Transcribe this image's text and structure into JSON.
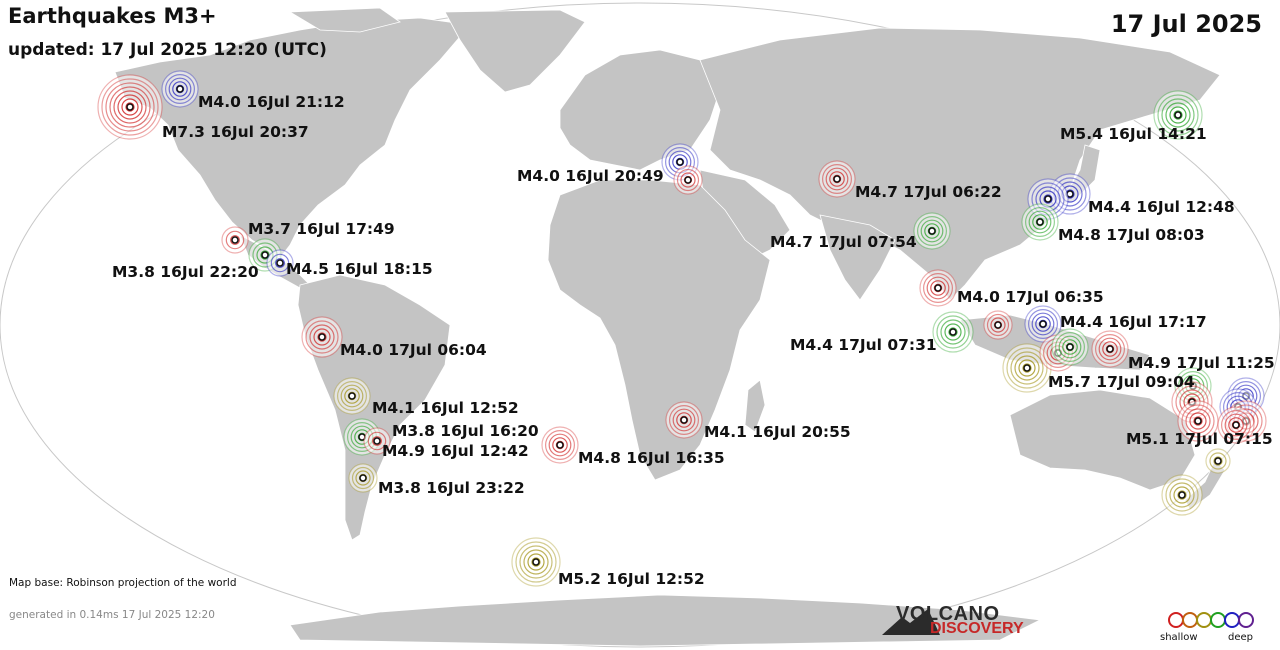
{
  "header": {
    "title": "Earthquakes M3+",
    "updated": "updated: 17 Jul 2025 12:20 (UTC)",
    "date": "17 Jul 2025"
  },
  "footer": {
    "map_base": "Map base: Robinson projection of the world",
    "generated": "generated in 0.14ms 17 Jul 2025 12:20",
    "logo_top": "VOLCANO",
    "logo_bottom": "DISCOVERY",
    "legend_shallow": "shallow",
    "legend_deep": "deep"
  },
  "depth_colors": {
    "shallow": "#d02020",
    "medium": "#a09010",
    "intermediate": "#20a020",
    "deep": "#2020c0"
  },
  "quakes": [
    {
      "label": "M7.3 16Jul 20:37",
      "depth": "shallow"
    },
    {
      "label": "M4.0 16Jul 21:12",
      "depth": "deep"
    },
    {
      "label": "M3.7 16Jul 17:49",
      "depth": "intermediate"
    },
    {
      "label": "M3.8 16Jul 22:20",
      "depth": "shallow"
    },
    {
      "label": "M4.5 16Jul 18:15",
      "depth": "deep"
    },
    {
      "label": "M4.0 17Jul 06:04",
      "depth": "shallow"
    },
    {
      "label": "M4.1 16Jul 12:52",
      "depth": "medium"
    },
    {
      "label": "M3.8 16Jul 16:20",
      "depth": "intermediate"
    },
    {
      "label": "M4.9 16Jul 12:42",
      "depth": "shallow"
    },
    {
      "label": "M3.8 16Jul 23:22",
      "depth": "medium"
    },
    {
      "label": "M4.8 16Jul 16:35",
      "depth": "shallow"
    },
    {
      "label": "M5.2 16Jul 12:52",
      "depth": "medium"
    },
    {
      "label": "M4.0 16Jul 20:49",
      "depth": "deep"
    },
    {
      "label": "",
      "depth": "shallow"
    },
    {
      "label": "M4.1 16Jul 20:55",
      "depth": "shallow"
    },
    {
      "label": "M4.7 17Jul 06:22",
      "depth": "shallow"
    },
    {
      "label": "M4.7 17Jul 07:54",
      "depth": "intermediate"
    },
    {
      "label": "M4.0 17Jul 06:35",
      "depth": "shallow"
    },
    {
      "label": "M4.4 17Jul 07:31",
      "depth": "intermediate"
    },
    {
      "label": "",
      "depth": "shallow"
    },
    {
      "label": "M5.4 16Jul 14:21",
      "depth": "intermediate"
    },
    {
      "label": "M4.4 16Jul 12:48",
      "depth": "deep"
    },
    {
      "label": "",
      "depth": "deep"
    },
    {
      "label": "M4.8 17Jul 08:03",
      "depth": "intermediate"
    },
    {
      "label": "M4.4 16Jul 17:17",
      "depth": "deep"
    },
    {
      "label": "M5.7 17Jul 09:04",
      "depth": "medium"
    },
    {
      "label": "",
      "depth": "shallow"
    },
    {
      "label": "",
      "depth": "intermediate"
    },
    {
      "label": "M4.9 17Jul 11:25",
      "depth": "shallow"
    },
    {
      "label": "",
      "depth": "intermediate"
    },
    {
      "label": "",
      "depth": "shallow"
    },
    {
      "label": "",
      "depth": "deep"
    },
    {
      "label": "",
      "depth": "deep"
    },
    {
      "label": "",
      "depth": "shallow"
    },
    {
      "label": "M5.1 17Jul 07:15",
      "depth": "shallow"
    },
    {
      "label": "",
      "depth": "shallow"
    },
    {
      "label": "",
      "depth": "medium"
    },
    {
      "label": "",
      "depth": "medium"
    }
  ]
}
